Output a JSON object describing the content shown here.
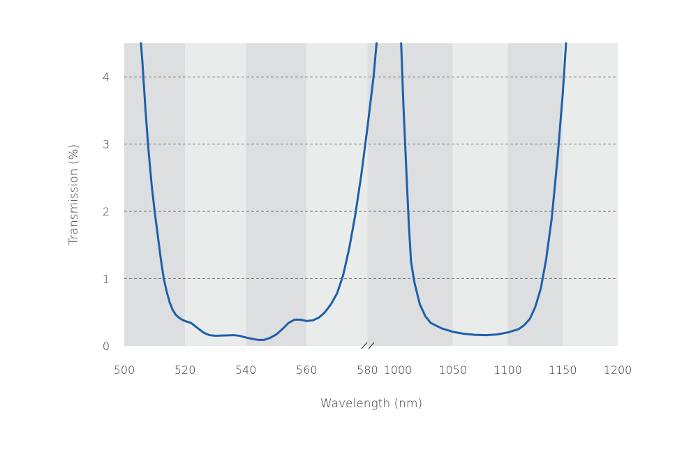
{
  "chart_data": {
    "type": "line",
    "xlabel": "Wavelength (nm)",
    "ylabel": "Transmission (%)",
    "ylim": [
      0,
      4.5
    ],
    "grid": "horizontal dashed",
    "broken_x_axis": true,
    "y_ticks": [
      "0",
      "1",
      "2",
      "3",
      "4"
    ],
    "segments": [
      {
        "xlim": [
          500,
          590
        ],
        "x_ticks": [
          "500",
          "520",
          "540",
          "560",
          "580"
        ],
        "band_edges": [
          500,
          520,
          540,
          560,
          580,
          590
        ],
        "points": [
          [
            505.5,
            4.5
          ],
          [
            506,
            4.2
          ],
          [
            507,
            3.5
          ],
          [
            508,
            2.9
          ],
          [
            509,
            2.4
          ],
          [
            510,
            2.0
          ],
          [
            511,
            1.65
          ],
          [
            512,
            1.3
          ],
          [
            513,
            1.0
          ],
          [
            514,
            0.8
          ],
          [
            515,
            0.64
          ],
          [
            516,
            0.53
          ],
          [
            517,
            0.46
          ],
          [
            518,
            0.42
          ],
          [
            519,
            0.39
          ],
          [
            520,
            0.37
          ],
          [
            522,
            0.34
          ],
          [
            524,
            0.27
          ],
          [
            526,
            0.2
          ],
          [
            528,
            0.16
          ],
          [
            530,
            0.15
          ],
          [
            533,
            0.155
          ],
          [
            536,
            0.16
          ],
          [
            538,
            0.15
          ],
          [
            540,
            0.125
          ],
          [
            542,
            0.105
          ],
          [
            544,
            0.09
          ],
          [
            546,
            0.09
          ],
          [
            548,
            0.12
          ],
          [
            550,
            0.17
          ],
          [
            552,
            0.25
          ],
          [
            554,
            0.34
          ],
          [
            556,
            0.39
          ],
          [
            558,
            0.39
          ],
          [
            560,
            0.37
          ],
          [
            562,
            0.38
          ],
          [
            564,
            0.42
          ],
          [
            566,
            0.5
          ],
          [
            568,
            0.62
          ],
          [
            570,
            0.78
          ],
          [
            572,
            1.05
          ],
          [
            574,
            1.45
          ],
          [
            576,
            1.95
          ],
          [
            578,
            2.55
          ],
          [
            580,
            3.25
          ],
          [
            582,
            4.0
          ],
          [
            583,
            4.5
          ]
        ]
      },
      {
        "xlim": [
          1000,
          1200
        ],
        "x_ticks": [
          "1000",
          "1050",
          "1100",
          "1150",
          "1200"
        ],
        "band_edges": [
          1000,
          1050,
          1100,
          1150,
          1200
        ],
        "points": [
          [
            1003,
            4.5
          ],
          [
            1005,
            3.6
          ],
          [
            1008,
            2.5
          ],
          [
            1010,
            1.8
          ],
          [
            1012,
            1.25
          ],
          [
            1015,
            0.95
          ],
          [
            1018,
            0.75
          ],
          [
            1020,
            0.62
          ],
          [
            1025,
            0.44
          ],
          [
            1030,
            0.34
          ],
          [
            1040,
            0.26
          ],
          [
            1050,
            0.21
          ],
          [
            1060,
            0.18
          ],
          [
            1070,
            0.165
          ],
          [
            1080,
            0.16
          ],
          [
            1090,
            0.17
          ],
          [
            1100,
            0.2
          ],
          [
            1110,
            0.25
          ],
          [
            1115,
            0.31
          ],
          [
            1120,
            0.4
          ],
          [
            1125,
            0.58
          ],
          [
            1130,
            0.85
          ],
          [
            1135,
            1.3
          ],
          [
            1140,
            1.9
          ],
          [
            1145,
            2.75
          ],
          [
            1150,
            3.75
          ],
          [
            1153,
            4.5
          ]
        ]
      }
    ],
    "colors": {
      "line": "#1f5fa8",
      "band_dark": "#dcdee0",
      "band_light": "#eaecec",
      "grid": "#7a7a7a",
      "text": "#3a3a3a"
    }
  }
}
